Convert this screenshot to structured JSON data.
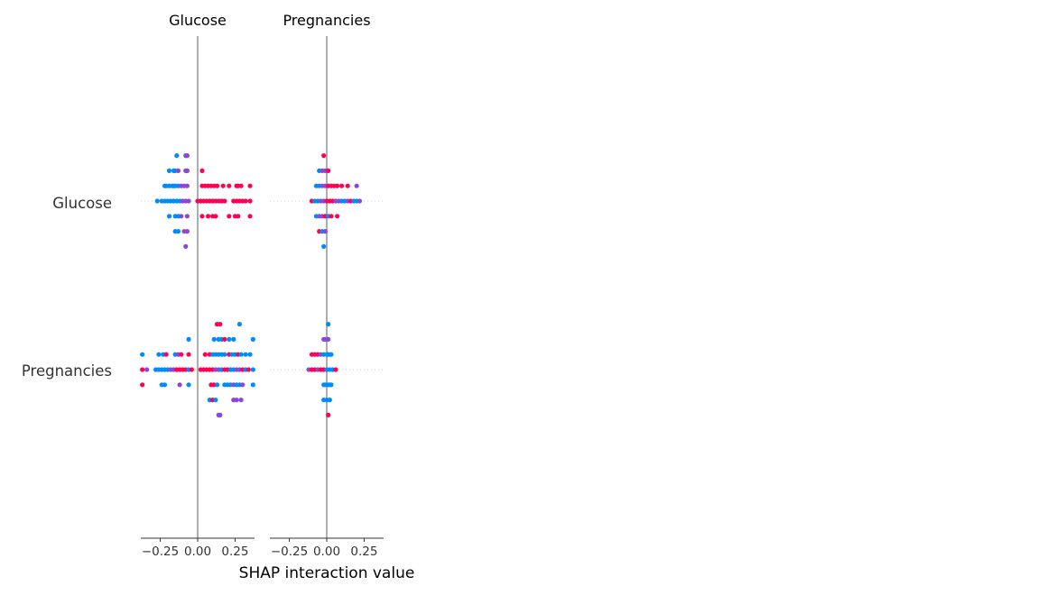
{
  "chart_data": {
    "type": "scatter",
    "subtype": "shap-interaction-beeswarm",
    "xlabel": "SHAP interaction value",
    "features": [
      "Glucose",
      "Pregnancies"
    ],
    "panels": [
      {
        "title": "Glucose",
        "xlim": [
          -0.38,
          0.38
        ]
      },
      {
        "title": "Pregnancies",
        "xlim": [
          -0.38,
          0.38
        ]
      }
    ],
    "xticks": [
      -0.25,
      0.0,
      0.25
    ],
    "xtick_labels": [
      "−0.25",
      "0.00",
      "0.25"
    ],
    "colors": {
      "low": "#008bfb",
      "mid": "#8a48d6",
      "high": "#ff0052",
      "zero_line": "#999999",
      "axis": "#333333",
      "row_line": "#cccccc"
    },
    "points": [
      {
        "panel": 0,
        "row": 0,
        "values": [
          -0.14,
          -0.08,
          -0.07,
          -0.19,
          -0.16,
          -0.15,
          -0.13,
          -0.08,
          -0.07,
          0.03,
          -0.22,
          -0.21,
          -0.19,
          -0.17,
          -0.16,
          -0.15,
          -0.13,
          -0.11,
          -0.09,
          -0.07,
          0.03,
          0.05,
          0.07,
          0.09,
          0.11,
          0.13,
          0.17,
          0.21,
          0.26,
          0.27,
          0.29,
          0.35,
          -0.27,
          -0.24,
          -0.22,
          -0.2,
          -0.18,
          -0.16,
          -0.14,
          -0.12,
          -0.1,
          -0.08,
          -0.06,
          0.0,
          0.02,
          0.04,
          0.06,
          0.08,
          0.1,
          0.12,
          0.14,
          0.16,
          0.18,
          0.24,
          0.26,
          0.28,
          0.3,
          0.32,
          0.35,
          -0.19,
          -0.15,
          -0.13,
          -0.11,
          -0.07,
          0.03,
          0.07,
          0.1,
          0.12,
          0.21,
          0.25,
          0.27,
          0.35,
          -0.15,
          -0.13,
          -0.09,
          -0.07,
          -0.08
        ],
        "levels": [
          0,
          1,
          1,
          0,
          0,
          0,
          1,
          1,
          1,
          2,
          0,
          0,
          0,
          0,
          0,
          0,
          0,
          1,
          1,
          1,
          2,
          2,
          2,
          2,
          2,
          2,
          2,
          2,
          2,
          2,
          2,
          2,
          0,
          0,
          0,
          0,
          0,
          0,
          0,
          0,
          1,
          1,
          1,
          2,
          2,
          2,
          2,
          2,
          2,
          2,
          2,
          2,
          2,
          2,
          2,
          2,
          2,
          2,
          2,
          0,
          0,
          0,
          1,
          1,
          2,
          2,
          2,
          2,
          2,
          2,
          2,
          2,
          0,
          0,
          1,
          1,
          1
        ],
        "offsets": [
          -3,
          -3,
          -3,
          -2,
          -2,
          -2,
          -2,
          -2,
          -2,
          -2,
          -1,
          -1,
          -1,
          -1,
          -1,
          -1,
          -1,
          -1,
          -1,
          -1,
          -1,
          -1,
          -1,
          -1,
          -1,
          -1,
          -1,
          -1,
          -1,
          -1,
          -1,
          -1,
          0,
          0,
          0,
          0,
          0,
          0,
          0,
          0,
          0,
          0,
          0,
          0,
          0,
          0,
          0,
          0,
          0,
          0,
          0,
          0,
          0,
          0,
          0,
          0,
          0,
          0,
          0,
          1,
          1,
          1,
          1,
          1,
          1,
          1,
          1,
          1,
          1,
          1,
          1,
          1,
          2,
          2,
          2,
          2,
          3
        ]
      },
      {
        "panel": 1,
        "row": 0,
        "values": [
          -0.02,
          -0.05,
          -0.03,
          -0.01,
          0.01,
          -0.07,
          -0.05,
          -0.03,
          -0.01,
          0.01,
          0.03,
          0.05,
          0.07,
          0.1,
          0.14,
          0.2,
          -0.1,
          -0.08,
          -0.06,
          -0.04,
          -0.02,
          0.0,
          0.02,
          0.04,
          0.06,
          0.08,
          0.1,
          0.12,
          0.14,
          0.16,
          0.18,
          0.2,
          0.22,
          -0.07,
          -0.05,
          -0.03,
          -0.01,
          0.01,
          0.03,
          0.07,
          -0.05,
          -0.03,
          -0.01,
          -0.02
        ],
        "levels": [
          2,
          0,
          1,
          1,
          2,
          0,
          0,
          1,
          1,
          2,
          2,
          2,
          2,
          2,
          2,
          1,
          2,
          0,
          0,
          1,
          1,
          2,
          2,
          2,
          1,
          1,
          0,
          0,
          1,
          2,
          0,
          0,
          1,
          0,
          1,
          1,
          2,
          0,
          2,
          2,
          2,
          0,
          1,
          0
        ],
        "offsets": [
          -3,
          -2,
          -2,
          -2,
          -2,
          -1,
          -1,
          -1,
          -1,
          -1,
          -1,
          -1,
          -1,
          -1,
          -1,
          -1,
          0,
          0,
          0,
          0,
          0,
          0,
          0,
          0,
          0,
          0,
          0,
          0,
          0,
          0,
          0,
          0,
          0,
          1,
          1,
          1,
          1,
          1,
          1,
          1,
          2,
          2,
          2,
          3
        ]
      },
      {
        "panel": 0,
        "row": 1,
        "values": [
          0.13,
          0.15,
          0.28,
          -0.06,
          0.11,
          0.14,
          0.16,
          0.18,
          0.21,
          0.24,
          0.37,
          -0.37,
          -0.26,
          -0.23,
          -0.21,
          -0.15,
          -0.13,
          -0.11,
          -0.06,
          0.05,
          0.08,
          0.1,
          0.12,
          0.14,
          0.16,
          0.18,
          0.21,
          0.23,
          0.25,
          0.27,
          0.29,
          0.32,
          0.35,
          -0.37,
          -0.34,
          -0.28,
          -0.26,
          -0.24,
          -0.22,
          -0.2,
          -0.18,
          -0.16,
          -0.14,
          -0.12,
          -0.1,
          -0.08,
          -0.06,
          -0.04,
          0.02,
          0.04,
          0.06,
          0.08,
          0.1,
          0.12,
          0.14,
          0.16,
          0.18,
          0.2,
          0.22,
          0.24,
          0.26,
          0.28,
          0.3,
          0.32,
          0.34,
          0.37,
          -0.37,
          -0.24,
          -0.22,
          -0.12,
          -0.06,
          0.09,
          0.11,
          0.13,
          0.18,
          0.2,
          0.22,
          0.24,
          0.26,
          0.28,
          0.3,
          0.37,
          0.08,
          0.1,
          0.12,
          0.24,
          0.26,
          0.29,
          0.14,
          0.15
        ],
        "levels": [
          2,
          2,
          0,
          0,
          0,
          0,
          0,
          2,
          0,
          0,
          0,
          0,
          0,
          0,
          2,
          0,
          1,
          2,
          2,
          2,
          2,
          0,
          0,
          0,
          0,
          0,
          2,
          0,
          0,
          2,
          0,
          0,
          0,
          2,
          1,
          0,
          0,
          0,
          0,
          0,
          1,
          1,
          2,
          2,
          2,
          2,
          0,
          2,
          2,
          2,
          2,
          2,
          2,
          1,
          1,
          0,
          2,
          2,
          0,
          0,
          1,
          1,
          2,
          0,
          2,
          0,
          2,
          0,
          0,
          1,
          0,
          2,
          2,
          0,
          0,
          0,
          0,
          1,
          0,
          0,
          1,
          0,
          0,
          2,
          0,
          1,
          1,
          1,
          1,
          1
        ],
        "offsets": [
          -3,
          -3,
          -3,
          -2,
          -2,
          -2,
          -2,
          -2,
          -2,
          -2,
          -2,
          -1,
          -1,
          -1,
          -1,
          -1,
          -1,
          -1,
          -1,
          -1,
          -1,
          -1,
          -1,
          -1,
          -1,
          -1,
          -1,
          -1,
          -1,
          -1,
          -1,
          -1,
          -1,
          0,
          0,
          0,
          0,
          0,
          0,
          0,
          0,
          0,
          0,
          0,
          0,
          0,
          0,
          0,
          0,
          0,
          0,
          0,
          0,
          0,
          0,
          0,
          0,
          0,
          0,
          0,
          0,
          0,
          0,
          0,
          0,
          0,
          1,
          1,
          1,
          1,
          1,
          1,
          1,
          1,
          1,
          1,
          1,
          1,
          1,
          1,
          1,
          1,
          2,
          2,
          2,
          2,
          2,
          2,
          3,
          3
        ]
      },
      {
        "panel": 1,
        "row": 1,
        "values": [
          0.01,
          -0.02,
          -0.01,
          0.01,
          -0.1,
          -0.08,
          -0.06,
          -0.04,
          -0.02,
          0.0,
          0.01,
          0.02,
          0.03,
          -0.12,
          -0.1,
          -0.08,
          -0.06,
          -0.04,
          -0.02,
          0.0,
          0.02,
          0.04,
          0.06,
          -0.02,
          -0.01,
          0.01,
          0.02,
          0.03,
          -0.02,
          0.0,
          0.02,
          0.01
        ],
        "levels": [
          0,
          1,
          1,
          1,
          2,
          2,
          2,
          1,
          0,
          0,
          0,
          0,
          0,
          1,
          2,
          2,
          1,
          2,
          2,
          0,
          0,
          0,
          2,
          0,
          0,
          0,
          0,
          0,
          0,
          0,
          0,
          2
        ],
        "offsets": [
          -3,
          -2,
          -2,
          -2,
          -1,
          -1,
          -1,
          -1,
          -1,
          -1,
          -1,
          -1,
          -1,
          0,
          0,
          0,
          0,
          0,
          0,
          0,
          0,
          0,
          0,
          1,
          1,
          1,
          1,
          1,
          2,
          2,
          2,
          3
        ]
      }
    ]
  }
}
